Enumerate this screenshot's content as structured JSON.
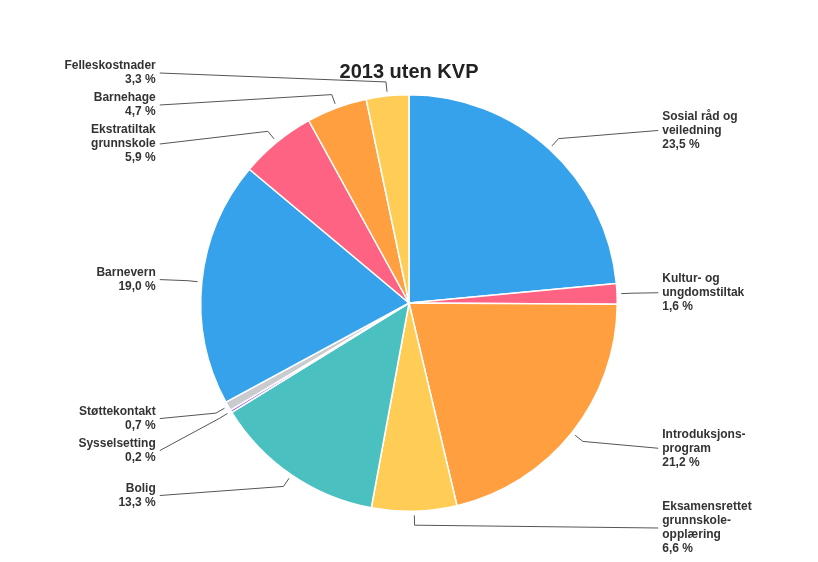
{
  "chart_data": {
    "type": "pie",
    "title": "2013 uten KVP",
    "categories": [
      "Sosial råd og\nveiledning",
      "Kultur- og\nungdomstiltak",
      "Introduksjons-\nprogram",
      "Eksamensrettet\ngrunnskole-\nopplæring",
      "Bolig",
      "Sysselsetting",
      "Støttekontakt",
      "Barnevern",
      "Ekstratiltak\ngrunnskole",
      "Barnehage",
      "Felleskostnader"
    ],
    "values": [
      23.5,
      1.6,
      21.2,
      6.6,
      13.3,
      0.2,
      0.7,
      19.0,
      5.9,
      4.7,
      3.3
    ],
    "value_labels": [
      "23,5 %",
      "1,6 %",
      "21,2 %",
      "6,6 %",
      "13,3 %",
      "0,2 %",
      "0,7 %",
      "19,0 %",
      "5,9 %",
      "4,7 %",
      "3,3 %"
    ],
    "data_labels": true
  }
}
